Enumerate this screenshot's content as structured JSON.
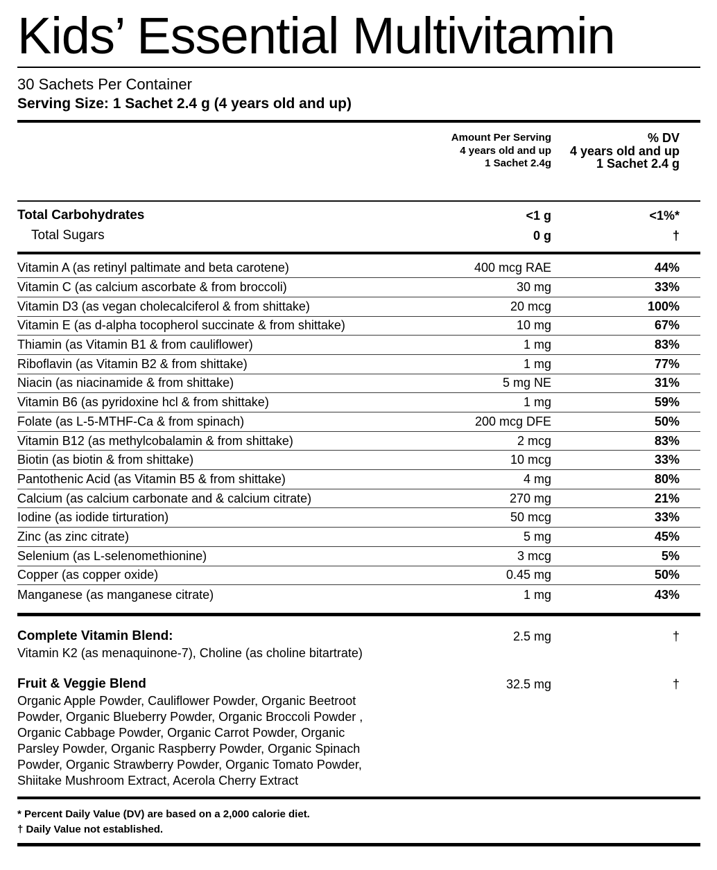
{
  "title": "Kids’ Essential Multivitamin",
  "header": {
    "sachets_per_container": "30 Sachets Per Container",
    "serving_size": "Serving Size: 1 Sachet 2.4 g (4 years old and up)"
  },
  "columns": {
    "amount": [
      "Amount Per Serving",
      "4 years old and up",
      "1 Sachet 2.4g"
    ],
    "dv": [
      "% DV",
      "4 years old and up",
      "1 Sachet 2.4 g"
    ]
  },
  "macros": [
    {
      "label": "Total Carbohydrates",
      "amount": "<1 g",
      "dv": "<1%*"
    },
    {
      "label": "Total Sugars",
      "amount": "0 g",
      "dv": "†"
    }
  ],
  "nutrients": [
    {
      "label": "Vitamin A (as retinyl paltimate and beta carotene)",
      "amount": "400 mcg RAE",
      "dv": "44%"
    },
    {
      "label": "Vitamin C (as calcium ascorbate & from broccoli)",
      "amount": "30 mg",
      "dv": "33%"
    },
    {
      "label": "Vitamin D3 (as vegan cholecalciferol & from shittake)",
      "amount": "20 mcg",
      "dv": "100%"
    },
    {
      "label": "Vitamin E (as d-alpha tocopherol succinate & from shittake)",
      "amount": "10 mg",
      "dv": "67%"
    },
    {
      "label": "Thiamin (as Vitamin B1 & from cauliflower)",
      "amount": "1 mg",
      "dv": "83%"
    },
    {
      "label": "Riboflavin (as Vitamin B2 & from shittake)",
      "amount": "1 mg",
      "dv": "77%"
    },
    {
      "label": "Niacin (as niacinamide & from shittake)",
      "amount": "5 mg NE",
      "dv": "31%"
    },
    {
      "label": "Vitamin B6 (as pyridoxine hcl & from shittake)",
      "amount": "1 mg",
      "dv": "59%"
    },
    {
      "label": "Folate (as L-5-MTHF-Ca & from spinach)",
      "amount": "200 mcg DFE",
      "dv": "50%"
    },
    {
      "label": "Vitamin B12 (as methylcobalamin & from shittake)",
      "amount": "2 mcg",
      "dv": "83%"
    },
    {
      "label": "Biotin (as biotin & from shittake)",
      "amount": "10 mcg",
      "dv": "33%"
    },
    {
      "label": "Pantothenic Acid (as Vitamin B5 & from shittake)",
      "amount": "4 mg",
      "dv": "80%"
    },
    {
      "label": "Calcium (as calcium carbonate and & calcium citrate)",
      "amount": "270 mg",
      "dv": "21%"
    },
    {
      "label": "Iodine (as iodide tirturation)",
      "amount": "50 mcg",
      "dv": "33%"
    },
    {
      "label": "Zinc (as zinc citrate)",
      "amount": "5 mg",
      "dv": "45%"
    },
    {
      "label": "Selenium (as L-selenomethionine)",
      "amount": "3 mcg",
      "dv": "5%"
    },
    {
      "label": "Copper (as copper oxide)",
      "amount": "0.45 mg",
      "dv": "50%"
    },
    {
      "label": "Manganese (as manganese citrate)",
      "amount": "1 mg",
      "dv": "43%"
    }
  ],
  "blends": [
    {
      "name": "Complete Vitamin Blend:",
      "amount": "2.5 mg",
      "dv": "†",
      "description": "Vitamin K2 (as menaquinone-7), Choline (as choline bitartrate)"
    },
    {
      "name": "Fruit & Veggie Blend",
      "amount": "32.5 mg",
      "dv": "†",
      "description": "Organic Apple Powder, Cauliflower Powder, Organic Beetroot\nPowder, Organic Blueberry Powder, Organic Broccoli Powder ,\nOrganic Cabbage Powder, Organic Carrot Powder, Organic\nParsley Powder, Organic Raspberry Powder, Organic Spinach\nPowder, Organic Strawberry Powder, Organic Tomato Powder,\nShiitake Mushroom Extract, Acerola Cherry Extract"
    }
  ],
  "footnotes": [
    "* Percent Daily Value (DV) are based on a 2,000 calorie diet.",
    "† Daily Value not established."
  ],
  "colors": {
    "text": "#000000",
    "background": "#ffffff",
    "separator": "#3a3a3a"
  }
}
